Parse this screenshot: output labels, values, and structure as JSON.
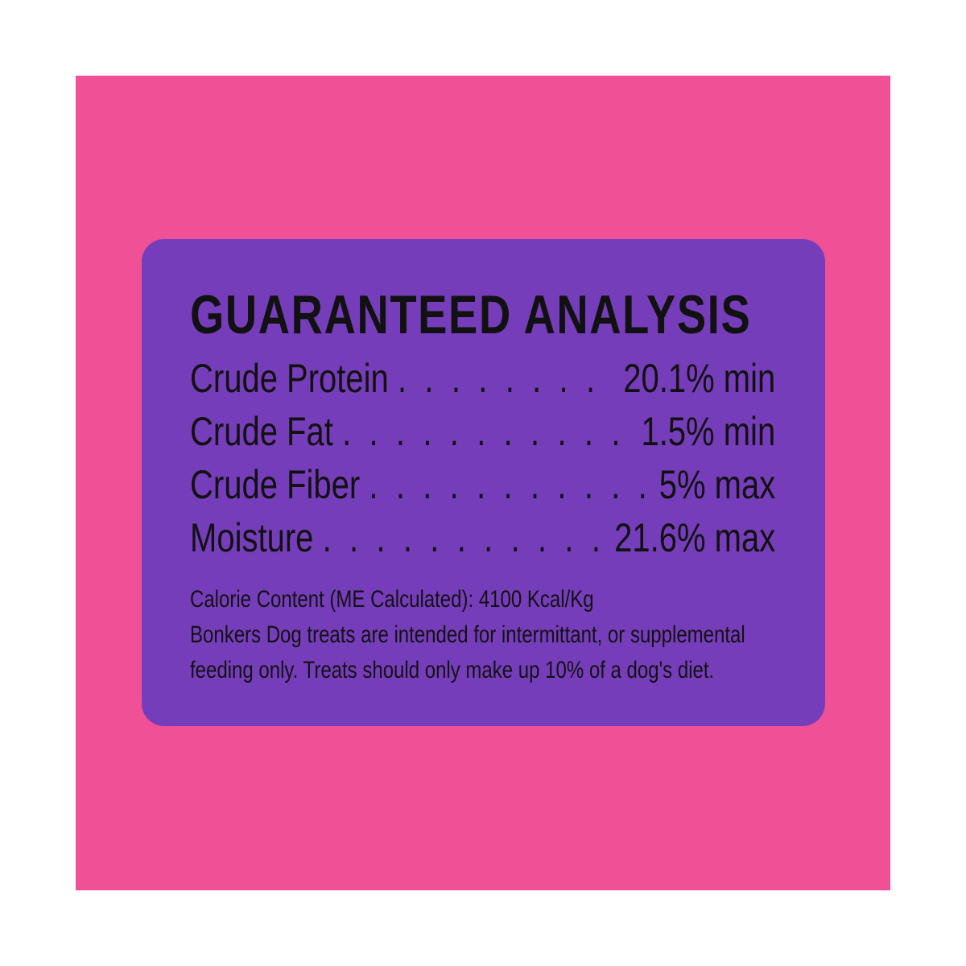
{
  "colors": {
    "background": "#EF5096",
    "panel": "#763DBA",
    "text": "#111111"
  },
  "title": "GUARANTEED ANALYSIS",
  "rows": [
    {
      "label": "Crude Protein",
      "value": "20.1% min"
    },
    {
      "label": "Crude Fat",
      "value": "1.5% min"
    },
    {
      "label": "Crude Fiber",
      "value": "5% max"
    },
    {
      "label": "Moisture",
      "value": "21.6% max"
    }
  ],
  "notes": {
    "calorie": "Calorie Content (ME Calculated): 4100 Kcal/Kg",
    "line1": "Bonkers Dog treats are intended for intermittant, or supplemental",
    "line2": "feeding only. Treats should only make up 10% of a dog's diet."
  }
}
